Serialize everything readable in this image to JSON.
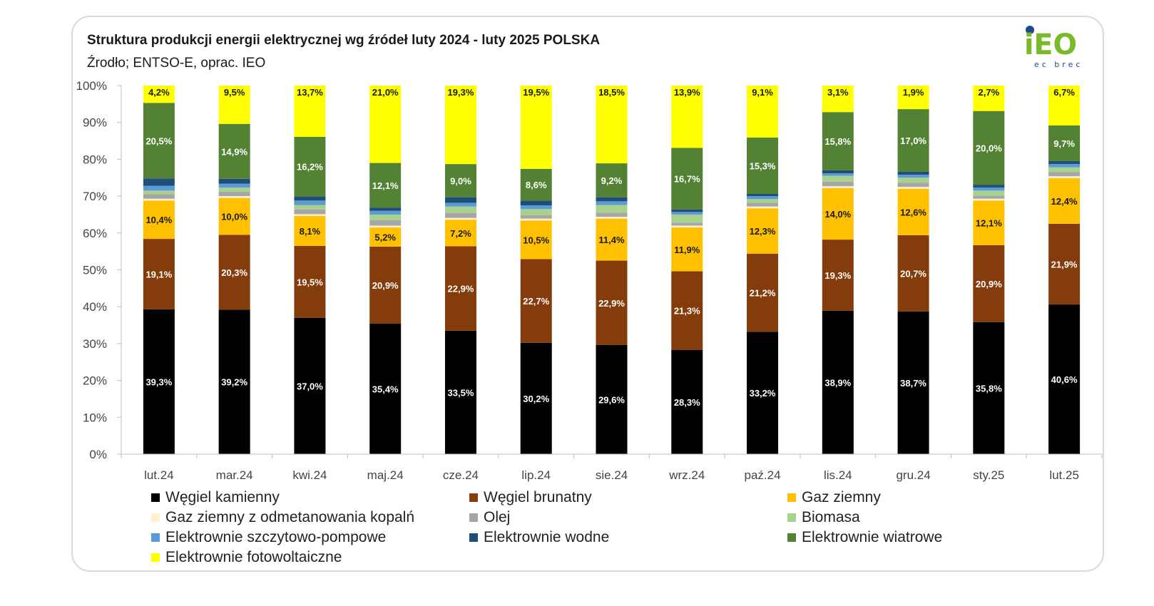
{
  "chart_data": {
    "type": "bar",
    "stacked": true,
    "title": "Struktura produkcji energii elektrycznej wg źródeł luty 2024 - luty 2025 POLSKA",
    "subtitle": "Źrodło; ENTSO-E, oprac. IEO",
    "categories": [
      "lut.24",
      "mar.24",
      "kwi.24",
      "maj.24",
      "cze.24",
      "lip.24",
      "sie.24",
      "wrz.24",
      "paź.24",
      "lis.24",
      "gru.24",
      "sty.25",
      "lut.25"
    ],
    "y_ticks": [
      "0%",
      "10%",
      "20%",
      "30%",
      "40%",
      "50%",
      "60%",
      "70%",
      "80%",
      "90%",
      "100%"
    ],
    "ylim": [
      0,
      100
    ],
    "legend_position": "bottom",
    "grid": false,
    "series": [
      {
        "name": "Węgiel kamienny",
        "color": "#000000",
        "label_color": "#ffffff",
        "values": [
          39.3,
          39.2,
          37.0,
          35.4,
          33.5,
          30.2,
          29.6,
          28.3,
          33.2,
          38.9,
          38.7,
          35.8,
          40.6
        ],
        "labels": [
          "39,3%",
          "39,2%",
          "37,0%",
          "35,4%",
          "33,5%",
          "30,2%",
          "29,6%",
          "28,3%",
          "33,2%",
          "38,9%",
          "38,7%",
          "35,8%",
          "40,6%"
        ]
      },
      {
        "name": "Węgiel brunatny",
        "color": "#843c0c",
        "label_color": "#ffffff",
        "values": [
          19.1,
          20.3,
          19.5,
          20.9,
          22.9,
          22.7,
          22.9,
          21.3,
          21.2,
          19.3,
          20.7,
          20.9,
          21.9
        ],
        "labels": [
          "19,1%",
          "20,3%",
          "19,5%",
          "20,9%",
          "22,9%",
          "22,7%",
          "22,9%",
          "21,3%",
          "21,2%",
          "19,3%",
          "20,7%",
          "20,9%",
          "21,9%"
        ]
      },
      {
        "name": "Gaz ziemny",
        "color": "#ffc000",
        "label_color": "#1a1a1a",
        "values": [
          10.4,
          10.0,
          8.1,
          5.2,
          7.2,
          10.5,
          11.4,
          11.9,
          12.3,
          14.0,
          12.6,
          12.1,
          12.4
        ],
        "labels": [
          "10,4%",
          "10,0%",
          "8,1%",
          "5,2%",
          "7,2%",
          "10,5%",
          "11,4%",
          "11,9%",
          "12,3%",
          "14,0%",
          "12,6%",
          "12,1%",
          "12,4%"
        ]
      },
      {
        "name": "Gaz ziemny z odmetanowania kopalń",
        "color": "#fff2cc",
        "label_color": "",
        "values": [
          0.5,
          0.5,
          0.5,
          0.5,
          0.5,
          0.5,
          0.5,
          0.5,
          0.5,
          0.5,
          0.5,
          0.5,
          0.5
        ],
        "labels": []
      },
      {
        "name": "Olej",
        "color": "#a6a6a6",
        "label_color": "",
        "values": [
          1.2,
          1.2,
          1.3,
          1.5,
          1.3,
          0.9,
          1.1,
          0.8,
          1.0,
          1.2,
          1.1,
          0.8,
          1.1
        ],
        "labels": []
      },
      {
        "name": "Biomasa",
        "color": "#a9d18e",
        "label_color": "",
        "values": [
          1.0,
          1.1,
          1.2,
          1.5,
          1.8,
          1.7,
          2.1,
          2.2,
          1.0,
          1.6,
          1.4,
          1.4,
          1.3
        ],
        "labels": []
      },
      {
        "name": "Elektrownie szczytowo-pompowe",
        "color": "#5b9bd5",
        "label_color": "",
        "values": [
          1.3,
          1.1,
          1.2,
          1.0,
          1.0,
          1.0,
          1.0,
          0.7,
          0.8,
          0.7,
          0.8,
          0.8,
          0.9
        ],
        "labels": []
      },
      {
        "name": "Elektrownie wodne",
        "color": "#1f4e79",
        "label_color": "",
        "values": [
          2.0,
          1.3,
          1.1,
          0.9,
          1.5,
          1.3,
          1.1,
          0.7,
          0.6,
          0.8,
          0.8,
          0.8,
          0.8
        ],
        "labels": []
      },
      {
        "name": "Elektrownie wiatrowe",
        "color": "#548235",
        "label_color": "#ffffff",
        "values": [
          20.5,
          14.9,
          16.2,
          12.1,
          9.0,
          8.6,
          9.2,
          16.7,
          15.3,
          15.8,
          17.0,
          20.0,
          9.7
        ],
        "labels": [
          "20,5%",
          "14,9%",
          "16,2%",
          "12,1%",
          "9,0%",
          "8,6%",
          "9,2%",
          "16,7%",
          "15,3%",
          "15,8%",
          "17,0%",
          "20,0%",
          "9,7%"
        ]
      },
      {
        "name": "Elektrownie fotowoltaiczne",
        "color": "#ffff00",
        "label_color": "#1a1a1a",
        "values": [
          4.2,
          9.5,
          13.7,
          21.0,
          19.3,
          19.5,
          18.5,
          13.9,
          9.1,
          3.1,
          1.9,
          2.7,
          6.7
        ],
        "labels": [
          "4,2%",
          "9,5%",
          "13,7%",
          "21,0%",
          "19,3%",
          "19,5%",
          "18,5%",
          "13,9%",
          "9,1%",
          "3,1%",
          "1,9%",
          "2,7%",
          "6,7%"
        ]
      }
    ]
  },
  "logo": {
    "text": "iEO",
    "tagline": "ec brec",
    "green": "#7ab929",
    "blue": "#1b4b8f"
  }
}
